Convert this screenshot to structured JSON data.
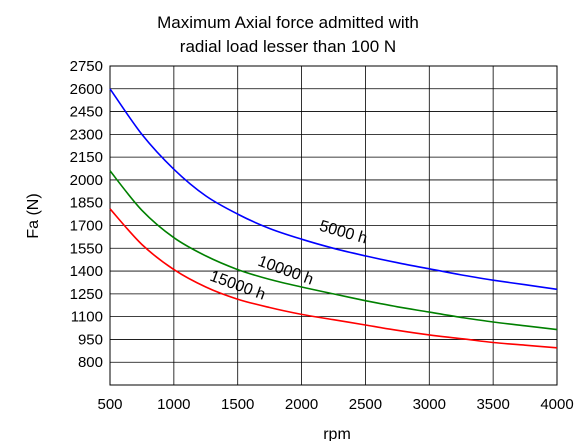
{
  "chart_data": {
    "type": "line",
    "title": "Maximum Axial force admitted with radial load lesser than 100 N",
    "title_lines": [
      "Maximum Axial force admitted with",
      "radial load lesser than 100 N"
    ],
    "xlabel": "rpm",
    "ylabel": "Fa (N)",
    "xlim": [
      500,
      4000
    ],
    "ylim": [
      650,
      2750
    ],
    "x_ticks": [
      500,
      1000,
      1500,
      2000,
      2500,
      3000,
      3500,
      4000
    ],
    "y_ticks": [
      800,
      950,
      1100,
      1250,
      1400,
      1550,
      1700,
      1850,
      2000,
      2150,
      2300,
      2450,
      2600,
      2750
    ],
    "grid": true,
    "legend": "inline labels on curves",
    "series": [
      {
        "name": "5000 h",
        "color": "#0000ff",
        "x": [
          500,
          750,
          1000,
          1250,
          1500,
          1750,
          2000,
          2250,
          2500,
          2750,
          3000,
          3250,
          3500,
          3750,
          4000
        ],
        "values": [
          2600,
          2300,
          2070,
          1895,
          1775,
          1680,
          1610,
          1550,
          1500,
          1455,
          1415,
          1375,
          1340,
          1310,
          1280
        ]
      },
      {
        "name": "10000 h",
        "color": "#008000",
        "x": [
          500,
          750,
          1000,
          1250,
          1500,
          1750,
          2000,
          2250,
          2500,
          2750,
          3000,
          3250,
          3500,
          3750,
          4000
        ],
        "values": [
          2060,
          1800,
          1620,
          1500,
          1410,
          1345,
          1295,
          1250,
          1205,
          1165,
          1130,
          1095,
          1065,
          1040,
          1015
        ]
      },
      {
        "name": "15000 h",
        "color": "#ff0000",
        "x": [
          500,
          750,
          1000,
          1250,
          1500,
          1750,
          2000,
          2250,
          2500,
          2750,
          3000,
          3250,
          3500,
          3750,
          4000
        ],
        "values": [
          1810,
          1575,
          1410,
          1295,
          1215,
          1160,
          1115,
          1080,
          1045,
          1010,
          980,
          955,
          930,
          912,
          895
        ]
      }
    ]
  }
}
